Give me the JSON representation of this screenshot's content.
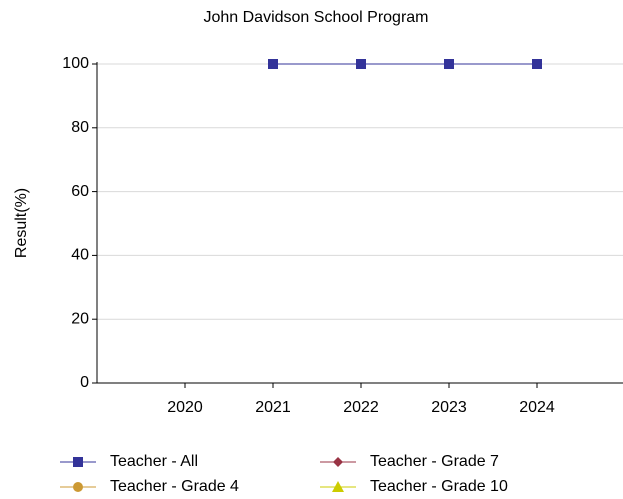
{
  "chart_data": {
    "type": "line",
    "title": "John Davidson School Program",
    "y_label": "Result(%)",
    "categories": [
      "2020",
      "2021",
      "2022",
      "2023",
      "2024"
    ],
    "series": [
      {
        "name": "Teacher - All",
        "color": "#333399",
        "marker": "square",
        "values": [
          null,
          100,
          100,
          100,
          100
        ]
      },
      {
        "name": "Teacher - Grade 7",
        "color": "#993344",
        "marker": "diamond",
        "values": [
          null,
          null,
          null,
          null,
          null
        ]
      },
      {
        "name": "Teacher - Grade 4",
        "color": "#cc9933",
        "marker": "circle",
        "values": [
          null,
          null,
          null,
          null,
          null
        ]
      },
      {
        "name": "Teacher - Grade 10",
        "color": "#cccc00",
        "marker": "triangle",
        "values": [
          null,
          null,
          null,
          null,
          null
        ]
      }
    ],
    "ylim": [
      0,
      100
    ],
    "yticks": [
      0,
      20,
      40,
      60,
      80,
      100
    ],
    "grid": true
  }
}
